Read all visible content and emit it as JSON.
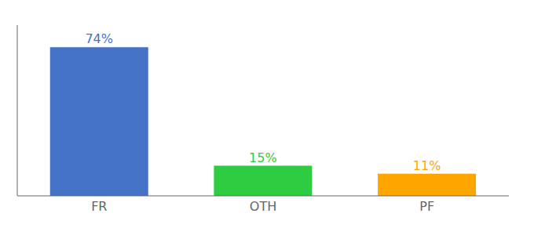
{
  "chart_data": {
    "type": "bar",
    "categories": [
      "FR",
      "OTH",
      "PF"
    ],
    "values": [
      74,
      15,
      11
    ],
    "value_labels": [
      "74%",
      "15%",
      "11%"
    ],
    "data_labels": true,
    "colors": [
      "#4472c4",
      "#2ecc40",
      "#ffa500"
    ],
    "ylim": [
      0,
      85
    ],
    "yticks": [],
    "tick_labels": "x",
    "grid": false
  }
}
